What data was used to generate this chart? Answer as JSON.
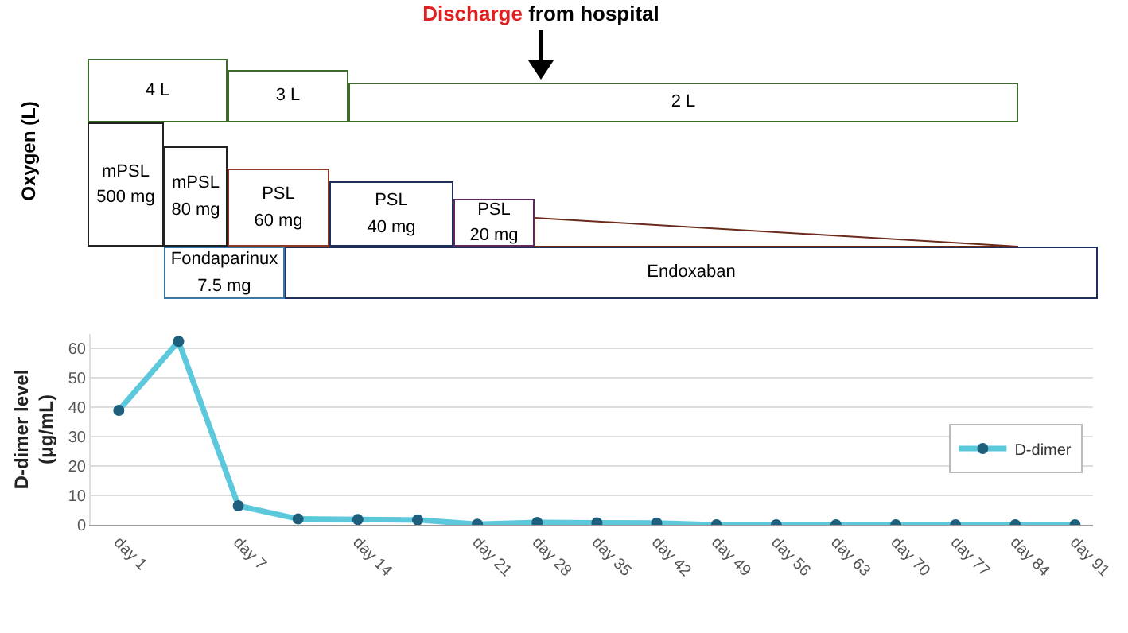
{
  "chart_data": [
    {
      "type": "other",
      "title": "Discharge from hospital",
      "ylabel": "Oxygen (L)",
      "annotations": [
        "4 L",
        "3 L",
        "2 L",
        "mPSL\n500 mg",
        "mPSL\n80 mg",
        "PSL\n60 mg",
        "PSL\n40 mg",
        "PSL\n20 mg",
        "Fondaparinux\n7.5 mg",
        "Endoxaban"
      ]
    },
    {
      "type": "line",
      "ylabel": "D-dimer level\n(μg/mL)",
      "categories": [
        "day 1",
        null,
        "day 7",
        null,
        "day 14",
        null,
        "day 21",
        "day 28",
        "day 35",
        "day 42",
        "day 49",
        "day 56",
        "day 63",
        "day 70",
        "day 77",
        "day 84",
        "day 91"
      ],
      "series": [
        {
          "name": "D-dimer",
          "color": "#5bc8dc",
          "values": [
            39,
            62.5,
            6.5,
            2,
            1.8,
            1.7,
            0.2,
            0.8,
            0.7,
            0.6,
            0,
            0,
            0,
            0,
            0,
            0,
            0
          ]
        }
      ],
      "ylim": [
        0,
        65
      ],
      "yticks": [
        0,
        10,
        20,
        30,
        40,
        50,
        60
      ],
      "grid": "y",
      "legend": "right",
      "marker": "circle",
      "line_style": "solid"
    }
  ]
}
